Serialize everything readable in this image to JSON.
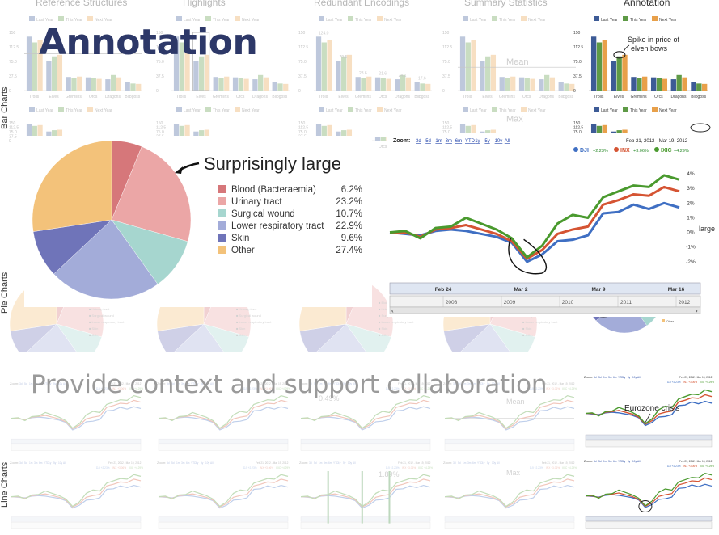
{
  "headline": "Annotation",
  "tagline": "Provide context and support collaboration",
  "columns": [
    "Reference Structures",
    "Highlights",
    "Redundant Encodings",
    "Summary Statistics",
    "Annotation"
  ],
  "rows": [
    "Bar Charts",
    "Pie Charts",
    "Line Charts"
  ],
  "bar_labels": {
    "mean": "Mean",
    "max": "Max",
    "percent_a": "0.49%",
    "percent_b": "1.89%",
    "large": "large"
  },
  "colors": {
    "last_year": "#3d5b96",
    "this_year": "#5e9a46",
    "next_year": "#e8a04a",
    "dji": "#3f6fc3",
    "inx": "#d55433",
    "ixic": "#4a9a2e",
    "title": "#2d3868"
  },
  "chart_data": [
    {
      "type": "bar",
      "title": "",
      "series": [
        {
          "name": "Last Year",
          "values": [
            139,
            77,
            35,
            34,
            29,
            22
          ]
        },
        {
          "name": "This Year",
          "values": [
            124,
            88,
            33,
            32,
            40,
            18
          ]
        },
        {
          "name": "Next Year",
          "values": [
            131,
            92,
            36,
            30,
            34,
            17
          ]
        }
      ],
      "categories": [
        "Trolls",
        "Elves",
        "Gremlins",
        "Orcs",
        "Dragons",
        "Bilbgoss"
      ],
      "ylim": [
        0,
        150
      ],
      "yticks": [
        "150",
        "112.5",
        "75.0",
        "37.5",
        "0"
      ],
      "tick_values": [
        "124.0",
        "79.5",
        "28.6",
        "21.6",
        "24.1",
        "17.6"
      ],
      "annotation": "Spike in price of elven bows",
      "legend": "top"
    },
    {
      "type": "pie",
      "title": "",
      "slices": [
        {
          "label": "Blood (Bacteraemia)",
          "value": 6.2,
          "display": "6.2%",
          "color": "#d6777a"
        },
        {
          "label": "Urinary tract",
          "value": 23.2,
          "display": "23.2%",
          "color": "#eba6a6"
        },
        {
          "label": "Surgical wound",
          "value": 10.7,
          "display": "10.7%",
          "color": "#a6d6cf"
        },
        {
          "label": "Lower respiratory tract",
          "value": 22.9,
          "display": "22.9%",
          "color": "#a3acd9"
        },
        {
          "label": "Skin",
          "value": 9.6,
          "display": "9.6%",
          "color": "#6f74b9"
        },
        {
          "label": "Other",
          "value": 27.4,
          "display": "27.4%",
          "color": "#f3c27a"
        }
      ],
      "annotation": "Surprisingly large",
      "legend": "right"
    },
    {
      "type": "line",
      "title": "",
      "zoom_label": "Zoom:",
      "zoom_options": [
        "3d",
        "5d",
        "1m",
        "3m",
        "6m",
        "YTD",
        "1y",
        "5y",
        "10y",
        "All"
      ],
      "date_range": "Feb 21, 2012 - Mar 19, 2012",
      "legend_entries": [
        {
          "name": "DJI",
          "change": "+2.23%"
        },
        {
          "name": "INX",
          "change": "+3.06%"
        },
        {
          "name": "IXIC",
          "change": "+4.29%"
        }
      ],
      "x_ticks": [
        "Feb 24",
        "Mar 2",
        "Mar 9",
        "Mar 16"
      ],
      "nav_years": [
        "2008",
        "2009",
        "2010",
        "2011",
        "2012"
      ],
      "yticks": [
        "4%",
        "3%",
        "2%",
        "1%",
        "0%",
        "-1%",
        "-2%"
      ],
      "ylim": [
        -3,
        4.5
      ],
      "series": [
        {
          "name": "DJI",
          "values": [
            0.0,
            -0.1,
            -0.2,
            0.1,
            0.2,
            0.1,
            -0.1,
            -0.3,
            -0.7,
            -2.0,
            -1.5,
            -0.6,
            -0.5,
            -0.2,
            1.3,
            1.4,
            1.9,
            1.6,
            2.0,
            1.7
          ]
        },
        {
          "name": "INX",
          "values": [
            0.0,
            0.0,
            -0.3,
            0.2,
            0.3,
            0.5,
            0.2,
            -0.1,
            -0.6,
            -1.8,
            -1.2,
            -0.1,
            0.2,
            0.4,
            1.9,
            2.2,
            2.6,
            2.5,
            3.1,
            2.8
          ]
        },
        {
          "name": "IXIC",
          "values": [
            0.0,
            0.1,
            -0.4,
            0.3,
            0.4,
            1.0,
            0.6,
            0.2,
            -0.4,
            -1.7,
            -0.9,
            0.6,
            1.2,
            1.0,
            2.4,
            2.8,
            3.2,
            3.1,
            3.9,
            3.6
          ]
        }
      ],
      "annotation": "Eurozone crisis"
    }
  ]
}
